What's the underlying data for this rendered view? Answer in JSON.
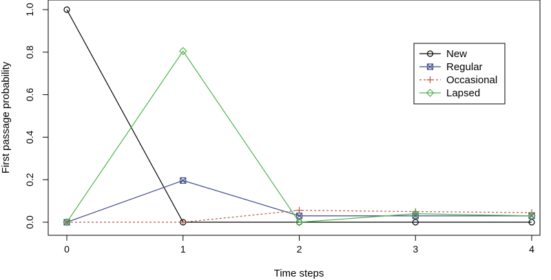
{
  "chart_data": {
    "type": "line",
    "xlabel": "Time steps",
    "ylabel": "First passage probability",
    "x": [
      0,
      1,
      2,
      3,
      4
    ],
    "xlim": [
      0,
      4
    ],
    "ylim": [
      0,
      1
    ],
    "x_ticks": [
      "0",
      "1",
      "2",
      "3",
      "4"
    ],
    "y_ticks": [
      "0.0",
      "0.2",
      "0.4",
      "0.6",
      "0.8",
      "1.0"
    ],
    "y_tick_values": [
      0,
      0.2,
      0.4,
      0.6,
      0.8,
      1.0
    ],
    "grid": false,
    "legend_position": "top-right",
    "series": [
      {
        "name": "New",
        "values": [
          1.0,
          0.0,
          0.0,
          0.0,
          0.0
        ],
        "color": "#000000",
        "marker": "circle",
        "line_style": "solid"
      },
      {
        "name": "Regular",
        "values": [
          0.0,
          0.196,
          0.03,
          0.03,
          0.03
        ],
        "color": "#3c4a8a",
        "marker": "square-x",
        "line_style": "solid"
      },
      {
        "name": "Occasional",
        "values": [
          0.0,
          0.0,
          0.056,
          0.05,
          0.045
        ],
        "color": "#b5574a",
        "marker": "plus",
        "line_style": "dashed"
      },
      {
        "name": "Lapsed",
        "values": [
          0.0,
          0.805,
          0.0,
          0.04,
          0.03
        ],
        "color": "#4cb34c",
        "marker": "diamond",
        "line_style": "solid"
      }
    ]
  }
}
